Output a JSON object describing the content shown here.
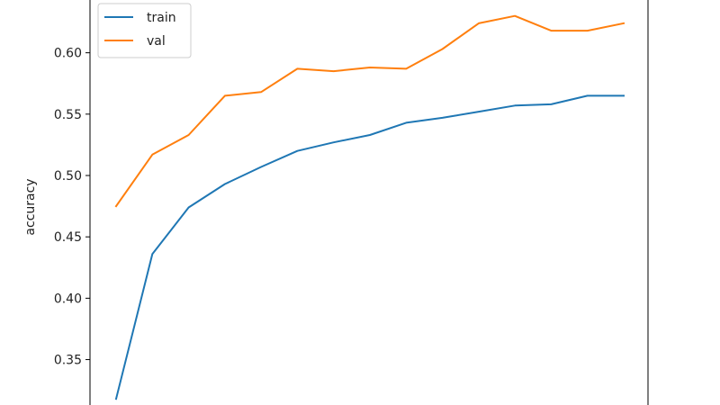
{
  "chart_data": {
    "type": "line",
    "xlabel": "",
    "ylabel": "accuracy",
    "x": [
      0,
      1,
      2,
      3,
      4,
      5,
      6,
      7,
      8,
      9,
      10,
      11,
      12,
      13,
      14
    ],
    "ylim": [
      0.313,
      0.643
    ],
    "yticks": [
      "0.35",
      "0.40",
      "0.45",
      "0.50",
      "0.55",
      "0.60"
    ],
    "grid": false,
    "legend_position": "top-left",
    "series": [
      {
        "name": "train",
        "color": "#1f77b4",
        "values": [
          0.318,
          0.436,
          0.474,
          0.493,
          0.507,
          0.52,
          0.527,
          0.533,
          0.543,
          0.547,
          0.552,
          0.557,
          0.558,
          0.565,
          0.565
        ]
      },
      {
        "name": "val",
        "color": "#ff7f0e",
        "values": [
          0.475,
          0.517,
          0.533,
          0.565,
          0.568,
          0.587,
          0.585,
          0.588,
          0.587,
          0.603,
          0.624,
          0.63,
          0.618,
          0.618,
          0.624
        ]
      }
    ]
  }
}
